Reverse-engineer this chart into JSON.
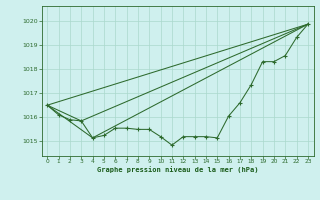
{
  "background_color": "#cff0ee",
  "grid_color": "#aad9cc",
  "line_color": "#2d6a2d",
  "marker_color": "#2d6a2d",
  "xlabel": "Graphe pression niveau de la mer (hPa)",
  "xlabel_color": "#1a5c1a",
  "ylabel_color": "#2d6a2d",
  "xlim": [
    -0.5,
    23.5
  ],
  "ylim": [
    1014.4,
    1020.6
  ],
  "yticks": [
    1015,
    1016,
    1017,
    1018,
    1019,
    1020
  ],
  "xticks": [
    0,
    1,
    2,
    3,
    4,
    5,
    6,
    7,
    8,
    9,
    10,
    11,
    12,
    13,
    14,
    15,
    16,
    17,
    18,
    19,
    20,
    21,
    22,
    23
  ],
  "series_main_x": [
    0,
    1,
    2,
    3,
    4,
    5,
    6,
    7,
    8,
    9,
    10,
    11,
    12,
    13,
    14,
    15,
    16,
    17,
    18,
    19,
    20,
    21,
    22,
    23
  ],
  "series_main_y": [
    1016.5,
    1016.1,
    1015.9,
    1015.85,
    1015.15,
    1015.25,
    1015.55,
    1015.55,
    1015.5,
    1015.5,
    1015.2,
    1014.85,
    1015.2,
    1015.2,
    1015.2,
    1015.15,
    1016.05,
    1016.6,
    1017.35,
    1018.3,
    1018.3,
    1018.55,
    1019.3,
    1019.85
  ],
  "series_line1_x": [
    0,
    23
  ],
  "series_line1_y": [
    1016.5,
    1019.85
  ],
  "series_line2_x": [
    0,
    3,
    23
  ],
  "series_line2_y": [
    1016.5,
    1015.85,
    1019.85
  ],
  "series_line3_x": [
    0,
    4,
    23
  ],
  "series_line3_y": [
    1016.5,
    1015.15,
    1019.85
  ]
}
